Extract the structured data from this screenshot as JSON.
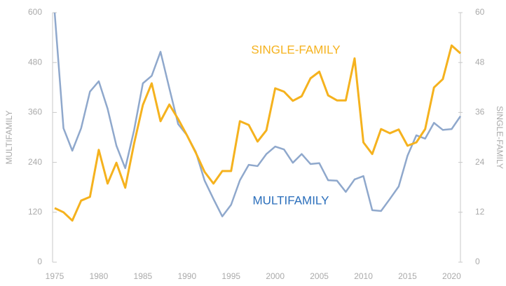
{
  "chart_data": {
    "type": "line",
    "ylabel": "MULTIFAMILY",
    "y2label": "SINGLE-FAMILY",
    "x": [
      1975,
      1976,
      1977,
      1978,
      1979,
      1980,
      1981,
      1982,
      1983,
      1984,
      1985,
      1986,
      1987,
      1988,
      1989,
      1990,
      1991,
      1992,
      1993,
      1994,
      1995,
      1996,
      1997,
      1998,
      1999,
      2000,
      2001,
      2002,
      2003,
      2004,
      2005,
      2006,
      2007,
      2008,
      2009,
      2010,
      2011,
      2012,
      2013,
      2014,
      2015,
      2016,
      2017,
      2018,
      2019,
      2020,
      2021
    ],
    "xlim": [
      1975,
      2021
    ],
    "xticks": [
      1975,
      1980,
      1985,
      1990,
      1995,
      2000,
      2005,
      2010,
      2015,
      2020
    ],
    "ylim": [
      0,
      600
    ],
    "yticks": [
      0,
      120,
      240,
      360,
      480,
      600
    ],
    "y2lim": [
      0,
      60
    ],
    "y2ticks": [
      0,
      12,
      24,
      36,
      48,
      60
    ],
    "series": [
      {
        "name": "MULTIFAMILY",
        "color": "#8fa8cc",
        "label_color": "#2a6ebb",
        "values": [
          600,
          322,
          268,
          322,
          410,
          435,
          369,
          280,
          226,
          317,
          430,
          448,
          506,
          418,
          332,
          305,
          265,
          196,
          152,
          110,
          138,
          197,
          234,
          231,
          260,
          278,
          271,
          239,
          260,
          236,
          238,
          197,
          196,
          169,
          199,
          207,
          125,
          123,
          152,
          182,
          256,
          305,
          297,
          335,
          318,
          320,
          351
        ]
      },
      {
        "name": "SINGLE-FAMILY",
        "color": "#f5b21e",
        "label_color": "#f5b21e",
        "axis": "y2",
        "values": [
          13.0,
          12.0,
          10.0,
          14.8,
          15.7,
          27.0,
          18.9,
          23.9,
          17.9,
          28.5,
          37.8,
          43.0,
          33.9,
          37.9,
          34.4,
          30.5,
          26.3,
          21.7,
          18.9,
          21.9,
          21.9,
          33.9,
          33.0,
          29.0,
          31.7,
          41.8,
          41.0,
          38.8,
          39.9,
          44.2,
          45.8,
          40.1,
          38.9,
          38.9,
          49.0,
          28.8,
          26.0,
          32.0,
          31.0,
          31.9,
          28.0,
          28.8,
          32.0,
          42.0,
          44.0,
          52.1,
          50.2
        ]
      }
    ]
  }
}
